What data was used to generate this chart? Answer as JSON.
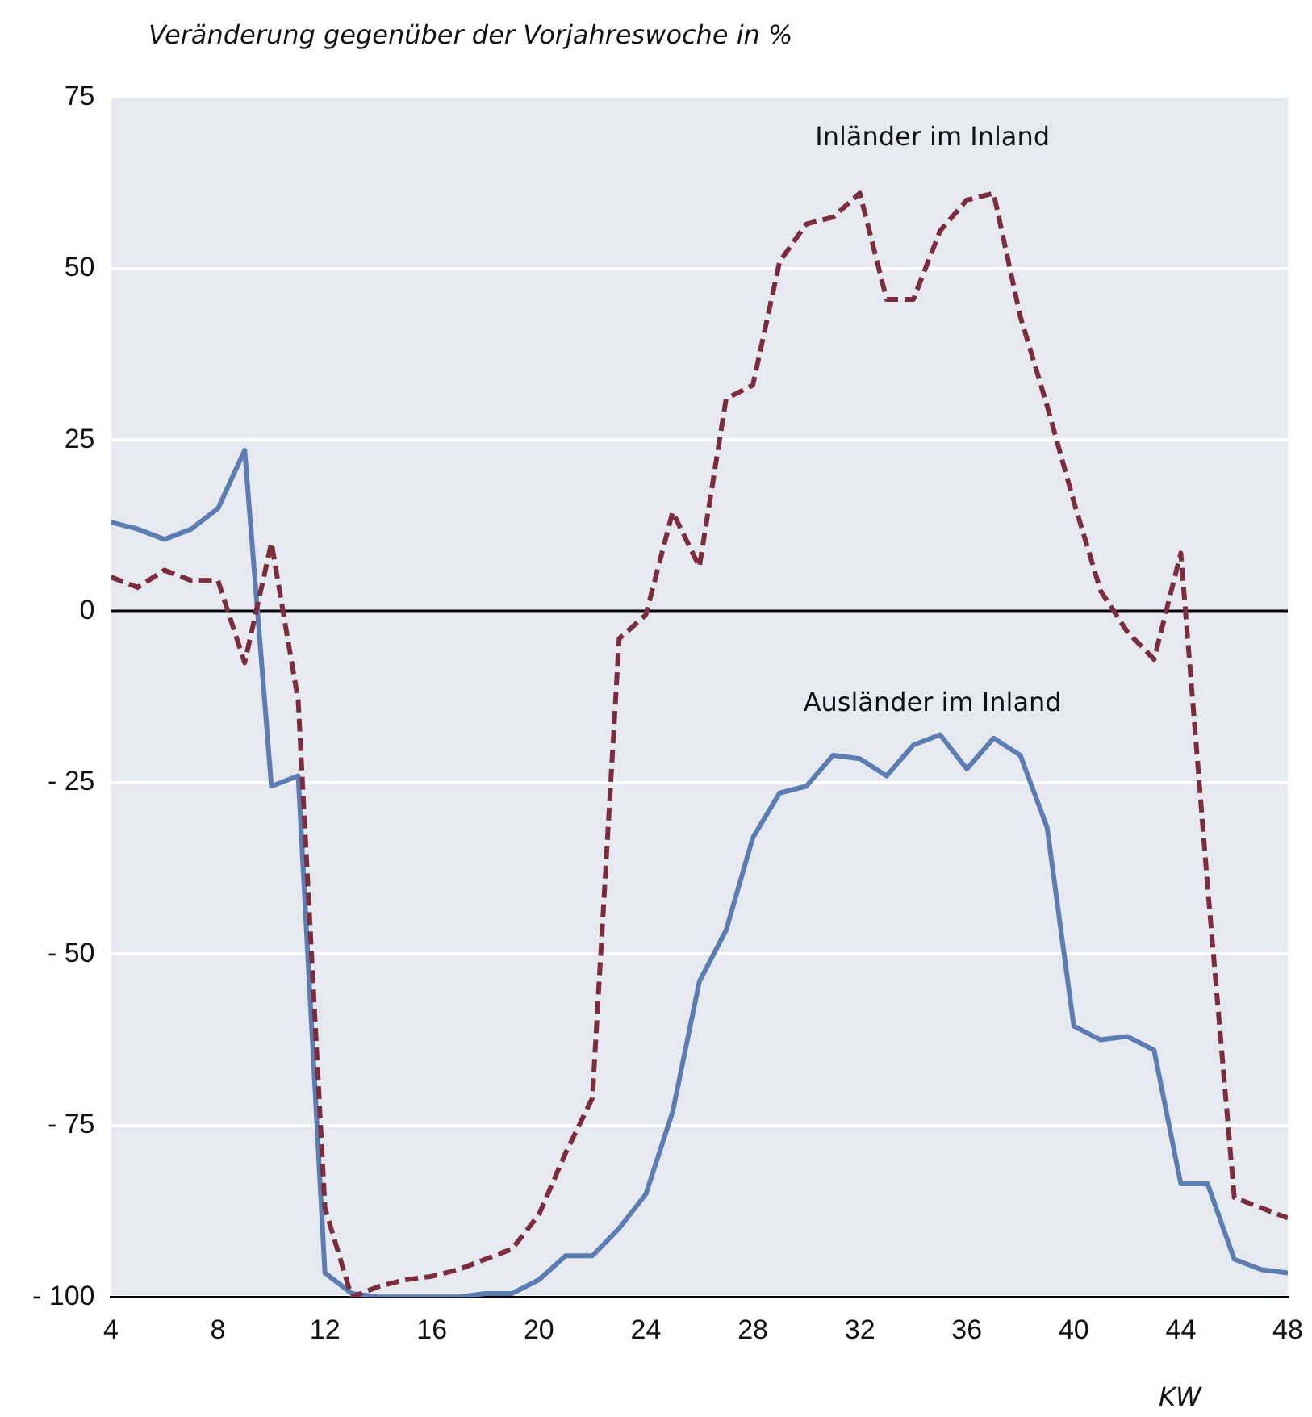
{
  "chart_data": {
    "type": "line",
    "ylabel": "Veränderung gegenüber der Vorjahreswoche in %",
    "xlabel": "KW",
    "x": [
      4,
      5,
      6,
      7,
      8,
      9,
      10,
      11,
      12,
      13,
      14,
      15,
      16,
      17,
      18,
      19,
      20,
      21,
      22,
      23,
      24,
      25,
      26,
      27,
      28,
      29,
      30,
      31,
      32,
      33,
      34,
      35,
      36,
      37,
      38,
      39,
      40,
      41,
      42,
      43,
      44,
      45,
      46,
      47,
      48
    ],
    "series": [
      {
        "name": "Inländer im Inland",
        "color": "#7b2d3e",
        "line_style": "dashed",
        "values": [
          5,
          3.5,
          6,
          4.5,
          4.5,
          -7.5,
          10,
          -13,
          -87,
          -100,
          -98.5,
          -97.5,
          -97,
          -96,
          -94.5,
          -93,
          -88,
          -79,
          -71,
          -4,
          -0.5,
          14.5,
          6.5,
          31,
          33,
          51,
          56.5,
          57.5,
          61,
          45.5,
          45.5,
          55.5,
          60,
          61,
          43,
          30,
          16,
          3,
          -3,
          -7,
          8.5,
          -40,
          -85.5,
          -87,
          -88.5
        ]
      },
      {
        "name": "Ausländer im Inland",
        "color": "#5b7db1",
        "line_style": "solid",
        "values": [
          13,
          12,
          10.5,
          12,
          15,
          23.5,
          -25.5,
          -24,
          -96.5,
          -99.5,
          -100,
          -100,
          -100,
          -100,
          -99.5,
          -99.5,
          -97.5,
          -94,
          -94,
          -90,
          -85,
          -73,
          -54,
          -46.5,
          -33,
          -26.5,
          -25.5,
          -21,
          -21.5,
          -24,
          -19.5,
          -18,
          -23,
          -18.5,
          -21,
          -31.5,
          -60.5,
          -62.5,
          -62,
          -64,
          -83.5,
          -83.5,
          -94.5,
          -96,
          -96.5
        ]
      }
    ],
    "xlim": [
      4,
      48
    ],
    "xticks": [
      4,
      8,
      12,
      16,
      20,
      24,
      28,
      32,
      36,
      40,
      44,
      48
    ],
    "ylim": [
      -100,
      75
    ],
    "yticks": [
      {
        "value": -100,
        "label": "- 100"
      },
      {
        "value": -75,
        "label": "- 75"
      },
      {
        "value": -50,
        "label": "- 50"
      },
      {
        "value": -25,
        "label": "- 25"
      },
      0,
      25,
      50,
      75
    ],
    "grid": "y",
    "legend": false,
    "marker": "none",
    "ref_lines": [
      {
        "axis": "y",
        "value": 0,
        "color": "#000000"
      }
    ]
  }
}
